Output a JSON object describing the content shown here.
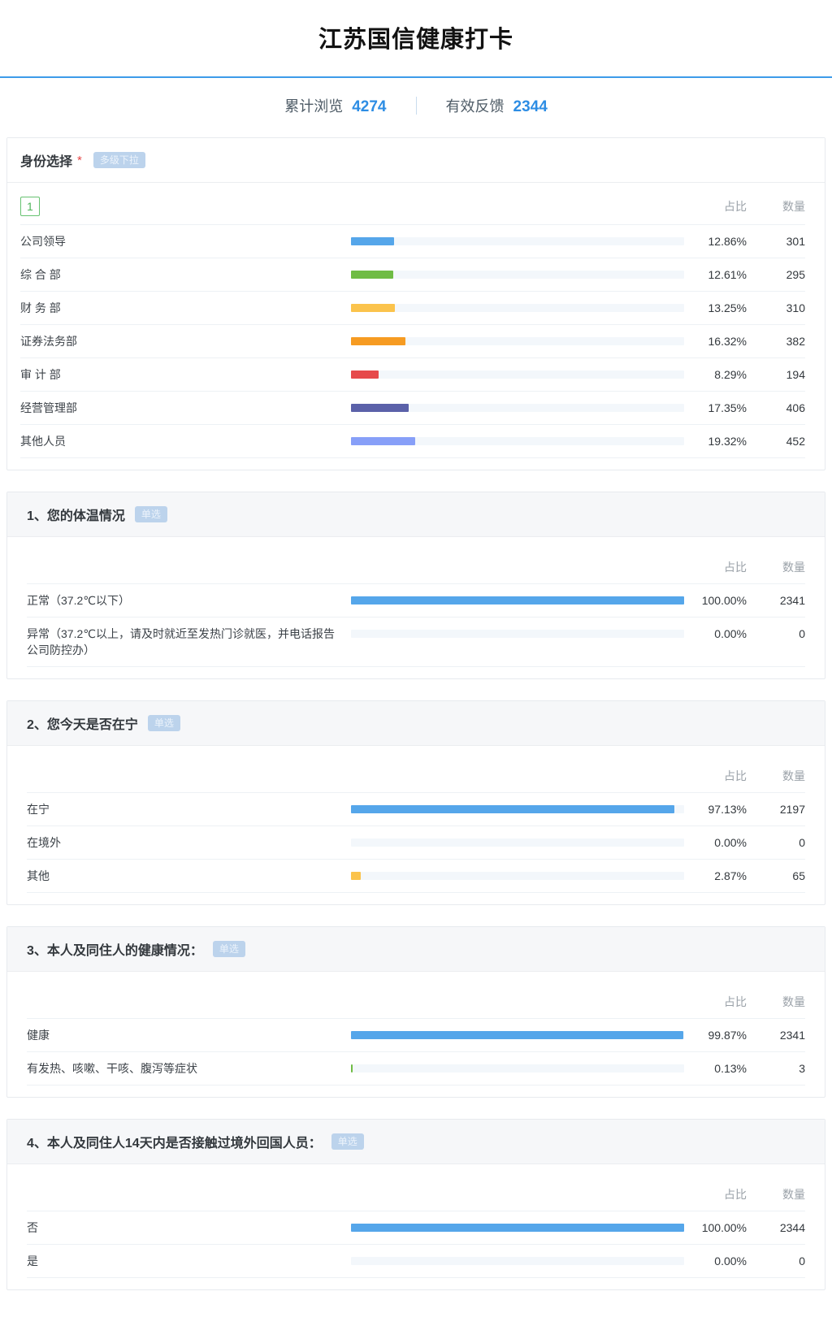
{
  "page": {
    "title": "江苏国信健康打卡",
    "stats": [
      {
        "label": "累计浏览",
        "value": "4274"
      },
      {
        "label": "有效反馈",
        "value": "2344"
      }
    ]
  },
  "columns": {
    "ratio": "占比",
    "count": "数量"
  },
  "colors": {
    "accent_blue": "#2d8de4",
    "rule_blue": "#3d9be9",
    "bar_track": "#f3f7fb",
    "badge_bg": "#bcd3ec",
    "index_box_green": "#4eb45a",
    "required_red": "#e54545"
  },
  "sections": [
    {
      "kind": "identity",
      "title": "身份选择",
      "required": "*",
      "badge": "多级下拉",
      "index_box": "1",
      "rows": [
        {
          "label": "公司领导",
          "pct": "12.86%",
          "value": 12.86,
          "count": "301",
          "color": "#55a6ea"
        },
        {
          "label": "综 合 部",
          "pct": "12.61%",
          "value": 12.61,
          "count": "295",
          "color": "#6fbc44"
        },
        {
          "label": "财 务 部",
          "pct": "13.25%",
          "value": 13.25,
          "count": "310",
          "color": "#fbc34c"
        },
        {
          "label": "证券法务部",
          "pct": "16.32%",
          "value": 16.32,
          "count": "382",
          "color": "#f69b22"
        },
        {
          "label": "审 计 部",
          "pct": "8.29%",
          "value": 8.29,
          "count": "194",
          "color": "#e64a4b"
        },
        {
          "label": "经营管理部",
          "pct": "17.35%",
          "value": 17.35,
          "count": "406",
          "color": "#5b61a9"
        },
        {
          "label": "其他人员",
          "pct": "19.32%",
          "value": 19.32,
          "count": "452",
          "color": "#879ff8"
        }
      ]
    },
    {
      "kind": "question",
      "title": "1、您的体温情况",
      "badge": "单选",
      "rows": [
        {
          "label": "正常（37.2℃以下）",
          "pct": "100.00%",
          "value": 100,
          "count": "2341",
          "color": "#55a6ea"
        },
        {
          "label": "异常（37.2℃以上，请及时就近至发热门诊就医，并电话报告公司防控办）",
          "pct": "0.00%",
          "value": 0,
          "count": "0",
          "color": "#6fbc44"
        }
      ]
    },
    {
      "kind": "question",
      "title": "2、您今天是否在宁",
      "badge": "单选",
      "rows": [
        {
          "label": "在宁",
          "pct": "97.13%",
          "value": 97.13,
          "count": "2197",
          "color": "#55a6ea"
        },
        {
          "label": "在境外",
          "pct": "0.00%",
          "value": 0,
          "count": "0",
          "color": "#6fbc44"
        },
        {
          "label": "其他",
          "pct": "2.87%",
          "value": 2.87,
          "count": "65",
          "color": "#fbc34c"
        }
      ]
    },
    {
      "kind": "question",
      "title": "3、本人及同住人的健康情况：",
      "badge": "单选",
      "rows": [
        {
          "label": "健康",
          "pct": "99.87%",
          "value": 99.87,
          "count": "2341",
          "color": "#55a6ea"
        },
        {
          "label": "有发热、咳嗽、干咳、腹泻等症状",
          "pct": "0.13%",
          "value": 0.13,
          "count": "3",
          "color": "#6fbc44"
        }
      ]
    },
    {
      "kind": "question",
      "title": "4、本人及同住人14天内是否接触过境外回国人员：",
      "badge": "单选",
      "rows": [
        {
          "label": "否",
          "pct": "100.00%",
          "value": 100,
          "count": "2344",
          "color": "#55a6ea"
        },
        {
          "label": "是",
          "pct": "0.00%",
          "value": 0,
          "count": "0",
          "color": "#6fbc44"
        }
      ]
    }
  ]
}
